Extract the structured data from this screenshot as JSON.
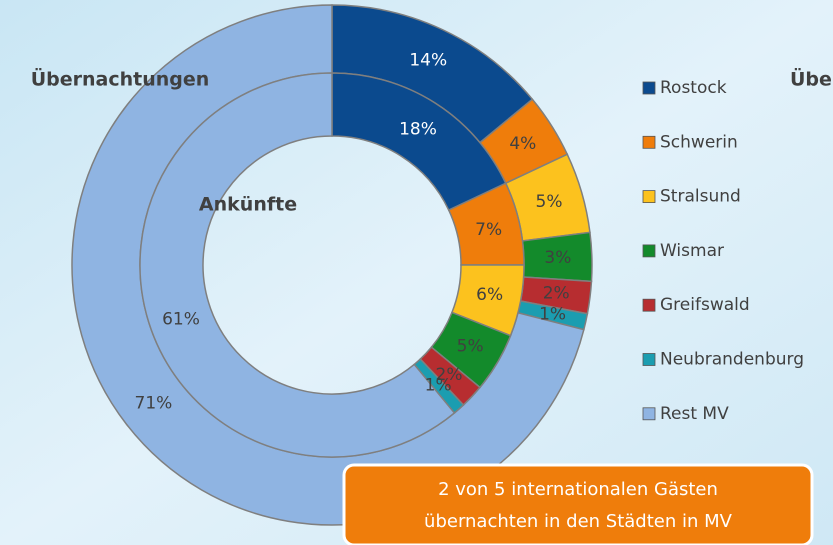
{
  "chart_data": {
    "type": "donut",
    "categories": [
      "Rostock",
      "Schwerin",
      "Stralsund",
      "Wismar",
      "Greifswald",
      "Neubrandenburg",
      "Rest MV"
    ],
    "colors": [
      "#0b4a8e",
      "#ef7d0b",
      "#fcc21e",
      "#138a2b",
      "#b72d30",
      "#1b9db0",
      "#8fb4e2"
    ],
    "series": [
      {
        "name": "Übernachtungen",
        "values": [
          14,
          4,
          5,
          3,
          2,
          1,
          71
        ],
        "value_labels": [
          "14%",
          "4%",
          "5%",
          "3%",
          "2%",
          "1%",
          "71%"
        ]
      },
      {
        "name": "Ankünfte",
        "values": [
          18,
          7,
          6,
          5,
          2,
          1,
          61
        ],
        "value_labels": [
          "18%",
          "7%",
          "6%",
          "5%",
          "2%",
          "1%",
          "61%"
        ]
      }
    ],
    "clipped_label": "Übe",
    "callout": [
      "2 von 5 internationalen Gästen",
      "übernachten in den Städten in MV"
    ]
  }
}
